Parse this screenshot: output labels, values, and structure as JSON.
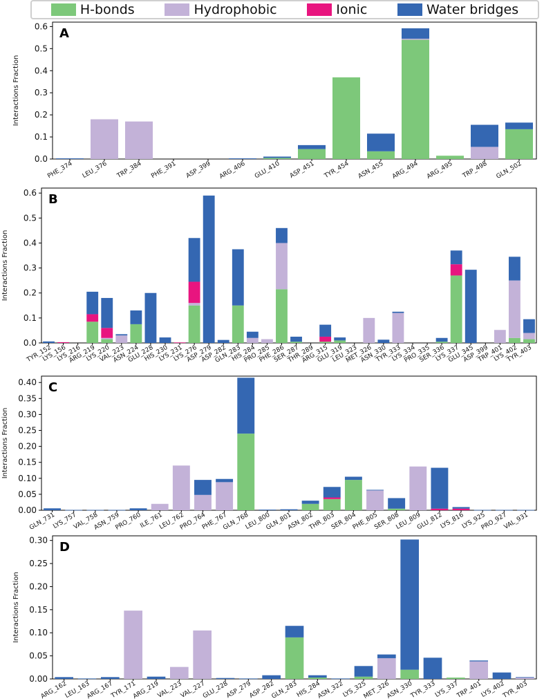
{
  "legend": [
    {
      "label": "H-bonds",
      "color": "#7dc87a"
    },
    {
      "label": "Hydrophobic",
      "color": "#c3b2d8"
    },
    {
      "label": "Ionic",
      "color": "#e8157f"
    },
    {
      "label": "Water bridges",
      "color": "#3467b2"
    }
  ],
  "chart_data": [
    {
      "type": "bar",
      "stacked": true,
      "panel_label": "A",
      "ylabel": "Interactions Fraction",
      "ylim": [
        0,
        0.62
      ],
      "yticks": [
        "0.0",
        "0.1",
        "0.2",
        "0.3",
        "0.4",
        "0.5",
        "0.6"
      ],
      "categories": [
        "PHE_374",
        "LEU_376",
        "TRP_384",
        "PHE_391",
        "ASP_399",
        "ARG_406",
        "GLU_410",
        "ASP_451",
        "TYR_454",
        "ASN_455",
        "ARG_494",
        "ARG_495",
        "TRP_498",
        "GLN_502"
      ],
      "series": [
        {
          "name": "H-bonds",
          "values": [
            0,
            0,
            0,
            0,
            0,
            0,
            0.005,
            0.045,
            0.37,
            0.035,
            0.54,
            0.015,
            0,
            0.135
          ]
        },
        {
          "name": "Hydrophobic",
          "values": [
            0,
            0.18,
            0.17,
            0,
            0,
            0,
            0,
            0,
            0,
            0,
            0.005,
            0,
            0.055,
            0
          ]
        },
        {
          "name": "Ionic",
          "values": [
            0,
            0,
            0,
            0,
            0,
            0,
            0,
            0,
            0,
            0,
            0,
            0,
            0,
            0
          ]
        },
        {
          "name": "Water bridges",
          "values": [
            0.003,
            0,
            0,
            0,
            0,
            0.003,
            0.006,
            0.018,
            0,
            0.08,
            0.047,
            0,
            0.1,
            0.03
          ]
        }
      ]
    },
    {
      "type": "bar",
      "stacked": true,
      "panel_label": "B",
      "ylabel": "Interactions Fraction",
      "ylim": [
        0,
        0.62
      ],
      "yticks": [
        "0.0",
        "0.1",
        "0.2",
        "0.3",
        "0.4",
        "0.5",
        "0.6"
      ],
      "categories": [
        "TYR_152",
        "LYS_156",
        "LYS_216",
        "ARG_219",
        "LYS_220",
        "VAL_223",
        "ASN_224",
        "GLU_228",
        "HIS_230",
        "LYS_231",
        "LYS_276",
        "ASP_279",
        "ASP_282",
        "GLN_283",
        "HIS_284",
        "PRO_285",
        "PHE_286",
        "SER_287",
        "THR_289",
        "ARG_315",
        "GLU_319",
        "LEU_323",
        "MET_326",
        "ASN_330",
        "TYR_333",
        "LYS_334",
        "PRO_335",
        "SER_336",
        "LYS_337",
        "GLU_345",
        "ASP_399",
        "TRP_401",
        "LYS_402",
        "TYR_403"
      ],
      "series": [
        {
          "name": "H-bonds",
          "values": [
            0,
            0,
            0,
            0.085,
            0.015,
            0,
            0.075,
            0,
            0,
            0,
            0.15,
            0,
            0,
            0.15,
            0,
            0,
            0.215,
            0.005,
            0,
            0.005,
            0.01,
            0,
            0,
            0,
            0,
            0,
            0,
            0.005,
            0.27,
            0,
            0,
            0,
            0.02,
            0.015
          ]
        },
        {
          "name": "Hydrophobic",
          "values": [
            0,
            0,
            0,
            0,
            0.005,
            0.03,
            0,
            0,
            0,
            0,
            0.01,
            0,
            0,
            0,
            0.02,
            0.015,
            0.185,
            0,
            0,
            0,
            0,
            0,
            0.1,
            0,
            0.12,
            0,
            0,
            0,
            0,
            0,
            0,
            0.052,
            0.23,
            0.025
          ]
        },
        {
          "name": "Ionic",
          "values": [
            0,
            0.003,
            0,
            0.03,
            0.04,
            0,
            0,
            0,
            0,
            0.002,
            0.085,
            0,
            0,
            0,
            0,
            0,
            0,
            0,
            0,
            0.02,
            0,
            0,
            0,
            0,
            0,
            0,
            0,
            0,
            0.045,
            0,
            0,
            0,
            0,
            0
          ]
        },
        {
          "name": "Water bridges",
          "values": [
            0.006,
            0,
            0,
            0.09,
            0.12,
            0.005,
            0.055,
            0.2,
            0.022,
            0,
            0.175,
            0.59,
            0.012,
            0.225,
            0.025,
            0,
            0.06,
            0.02,
            0,
            0.048,
            0.012,
            0,
            0,
            0.013,
            0.005,
            0,
            0,
            0.015,
            0.055,
            0.293,
            0,
            0,
            0.095,
            0.055
          ]
        }
      ]
    },
    {
      "type": "bar",
      "stacked": true,
      "panel_label": "C",
      "ylabel": "Interactions Fraction",
      "ylim": [
        0,
        0.42
      ],
      "yticks": [
        "0.00",
        "0.05",
        "0.10",
        "0.15",
        "0.20",
        "0.25",
        "0.30",
        "0.35",
        "0.40"
      ],
      "categories": [
        "GLN_731",
        "LYS_757",
        "VAL_758",
        "ASN_759",
        "PRO_760",
        "ILE_761",
        "LEU_762",
        "PRO_764",
        "PHE_767",
        "GLN_768",
        "LEU_800",
        "GLN_801",
        "ASN_802",
        "THR_803",
        "SER_804",
        "PHE_805",
        "SER_808",
        "LEU_809",
        "GLU_812",
        "LYS_816",
        "LYS_925",
        "PRO_927",
        "VAL_931"
      ],
      "series": [
        {
          "name": "H-bonds",
          "values": [
            0,
            0,
            0,
            0,
            0,
            0,
            0,
            0,
            0,
            0.24,
            0,
            0,
            0.02,
            0.035,
            0.095,
            0,
            0.005,
            0,
            0,
            0,
            0,
            0,
            0
          ]
        },
        {
          "name": "Hydrophobic",
          "values": [
            0,
            0,
            0,
            0,
            0,
            0.02,
            0.14,
            0.048,
            0.088,
            0,
            0,
            0,
            0,
            0,
            0,
            0.062,
            0,
            0.137,
            0,
            0,
            0,
            0,
            0
          ]
        },
        {
          "name": "Ionic",
          "values": [
            0,
            0,
            0,
            0,
            0,
            0,
            0,
            0,
            0,
            0,
            0,
            0,
            0,
            0.005,
            0,
            0,
            0,
            0,
            0.005,
            0.005,
            0,
            0,
            0
          ]
        },
        {
          "name": "Water bridges",
          "values": [
            0.006,
            0.001,
            0.001,
            0.001,
            0.006,
            0,
            0,
            0.047,
            0.01,
            0.175,
            0.002,
            0.003,
            0.01,
            0.033,
            0.01,
            0.002,
            0.033,
            0,
            0.128,
            0.005,
            0.001,
            0.001,
            0.001
          ]
        }
      ]
    },
    {
      "type": "bar",
      "stacked": true,
      "panel_label": "D",
      "ylabel": "Interactions Fraction",
      "ylim": [
        0,
        0.31
      ],
      "yticks": [
        "0.00",
        "0.05",
        "0.10",
        "0.15",
        "0.20",
        "0.25",
        "0.30"
      ],
      "categories": [
        "ARG_162",
        "LEU_163",
        "ARG_167",
        "TYR_171",
        "ARG_219",
        "VAL_223",
        "VAL_227",
        "GLU_228",
        "ASP_279",
        "ASP_282",
        "GLN_283",
        "HIS_284",
        "ASN_322",
        "LYS_325",
        "MET_326",
        "ASN_330",
        "TYR_333",
        "LYS_337",
        "TRP_401",
        "LYS_402",
        "TYR_403"
      ],
      "series": [
        {
          "name": "H-bonds",
          "values": [
            0,
            0,
            0,
            0,
            0,
            0,
            0,
            0,
            0,
            0,
            0.09,
            0.003,
            0,
            0.005,
            0,
            0.02,
            0,
            0.003,
            0,
            0,
            0
          ]
        },
        {
          "name": "Hydrophobic",
          "values": [
            0,
            0,
            0,
            0.148,
            0,
            0.026,
            0.105,
            0,
            0,
            0,
            0,
            0,
            0,
            0,
            0.045,
            0,
            0,
            0,
            0.038,
            0,
            0.003
          ]
        },
        {
          "name": "Ionic",
          "values": [
            0,
            0,
            0,
            0,
            0,
            0,
            0,
            0,
            0,
            0,
            0,
            0,
            0,
            0,
            0,
            0,
            0,
            0,
            0,
            0,
            0
          ]
        },
        {
          "name": "Water bridges",
          "values": [
            0.004,
            0.001,
            0.004,
            0,
            0.005,
            0,
            0,
            0.002,
            0.001,
            0.008,
            0.025,
            0.005,
            0.001,
            0.023,
            0.008,
            0.282,
            0.046,
            0,
            0.002,
            0.014,
            0.001
          ]
        }
      ]
    }
  ]
}
